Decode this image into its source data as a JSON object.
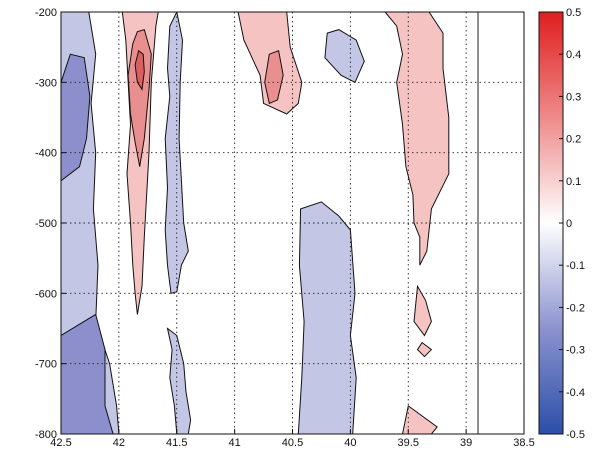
{
  "chart_data": {
    "type": "contour",
    "title": "",
    "xlabel": "",
    "ylabel": "",
    "x_reversed": true,
    "xlim": [
      42.5,
      38.5
    ],
    "ylim": [
      -800,
      -200
    ],
    "x_ticks": [
      "42.5",
      "42",
      "41.5",
      "41",
      "40.5",
      "40",
      "39.5",
      "39",
      "38.5"
    ],
    "x_tick_values": [
      42.5,
      42,
      41.5,
      41,
      40.5,
      40,
      39.5,
      39,
      38.5
    ],
    "y_ticks": [
      "-200",
      "-300",
      "-400",
      "-500",
      "-600",
      "-700",
      "-800"
    ],
    "y_tick_values": [
      -200,
      -300,
      -400,
      -500,
      -600,
      -700,
      -800
    ],
    "grid": true,
    "colorbar": {
      "min": -0.5,
      "max": 0.5,
      "ticks": [
        "0.5",
        "0.4",
        "0.3",
        "0.2",
        "0.1",
        "0",
        "-0.1",
        "-0.2",
        "-0.3",
        "-0.4",
        "-0.5"
      ],
      "tick_values": [
        0.5,
        0.4,
        0.3,
        0.2,
        0.1,
        0,
        -0.1,
        -0.2,
        -0.3,
        -0.4,
        -0.5
      ],
      "colormap": "blue-white-red",
      "low_color": "#2c4fa8",
      "mid_color": "#ffffff",
      "high_color": "#e01e1e"
    },
    "contour_levels": [
      -0.2,
      -0.1,
      0.1,
      0.2
    ],
    "level_colors": {
      "-0.2": "#8c8fcb",
      "-0.1": "#c4c6e6",
      "0.1": "#f6c3c3",
      "0.2": "#ea8f8f",
      "0.3": "#dd5e5e"
    },
    "regions": [
      {
        "level": -0.1,
        "points": [
          [
            42.5,
            -200
          ],
          [
            42.26,
            -200
          ],
          [
            42.2,
            -260
          ],
          [
            42.24,
            -330
          ],
          [
            42.2,
            -400
          ],
          [
            42.22,
            -480
          ],
          [
            42.18,
            -560
          ],
          [
            42.2,
            -640
          ],
          [
            42.08,
            -700
          ],
          [
            42.02,
            -760
          ],
          [
            42.0,
            -800
          ],
          [
            42.5,
            -800
          ]
        ]
      },
      {
        "level": -0.2,
        "points": [
          [
            42.5,
            -300
          ],
          [
            42.42,
            -260
          ],
          [
            42.3,
            -265
          ],
          [
            42.25,
            -320
          ],
          [
            42.28,
            -380
          ],
          [
            42.34,
            -420
          ],
          [
            42.5,
            -440
          ]
        ]
      },
      {
        "level": -0.2,
        "points": [
          [
            42.5,
            -660
          ],
          [
            42.2,
            -630
          ],
          [
            42.12,
            -680
          ],
          [
            42.12,
            -760
          ],
          [
            42.05,
            -800
          ],
          [
            42.5,
            -800
          ]
        ]
      },
      {
        "level": 0.1,
        "points": [
          [
            41.97,
            -200
          ],
          [
            41.94,
            -240
          ],
          [
            41.9,
            -360
          ],
          [
            41.93,
            -430
          ],
          [
            41.9,
            -500
          ],
          [
            41.88,
            -560
          ],
          [
            41.86,
            -600
          ],
          [
            41.84,
            -630
          ],
          [
            41.8,
            -590
          ],
          [
            41.78,
            -520
          ],
          [
            41.74,
            -400
          ],
          [
            41.72,
            -300
          ],
          [
            41.68,
            -220
          ],
          [
            41.66,
            -200
          ]
        ]
      },
      {
        "level": 0.2,
        "points": [
          [
            41.88,
            -245
          ],
          [
            41.92,
            -290
          ],
          [
            41.9,
            -345
          ],
          [
            41.86,
            -385
          ],
          [
            41.82,
            -420
          ],
          [
            41.78,
            -380
          ],
          [
            41.74,
            -310
          ],
          [
            41.72,
            -260
          ],
          [
            41.78,
            -225
          ],
          [
            41.84,
            -228
          ]
        ]
      },
      {
        "level": 0.3,
        "points": [
          [
            41.83,
            -255
          ],
          [
            41.86,
            -275
          ],
          [
            41.84,
            -300
          ],
          [
            41.8,
            -310
          ],
          [
            41.78,
            -285
          ],
          [
            41.79,
            -260
          ]
        ]
      },
      {
        "level": -0.1,
        "points": [
          [
            41.5,
            -200
          ],
          [
            41.56,
            -220
          ],
          [
            41.58,
            -280
          ],
          [
            41.56,
            -320
          ],
          [
            41.6,
            -380
          ],
          [
            41.58,
            -450
          ],
          [
            41.6,
            -510
          ],
          [
            41.58,
            -560
          ],
          [
            41.55,
            -600
          ],
          [
            41.5,
            -598
          ],
          [
            41.46,
            -560
          ],
          [
            41.4,
            -540
          ],
          [
            41.44,
            -500
          ],
          [
            41.46,
            -440
          ],
          [
            41.48,
            -380
          ],
          [
            41.47,
            -300
          ],
          [
            41.45,
            -240
          ]
        ]
      },
      {
        "level": -0.1,
        "points": [
          [
            41.58,
            -650
          ],
          [
            41.54,
            -680
          ],
          [
            41.56,
            -720
          ],
          [
            41.52,
            -760
          ],
          [
            41.5,
            -800
          ],
          [
            41.4,
            -800
          ],
          [
            41.38,
            -780
          ],
          [
            41.42,
            -740
          ],
          [
            41.44,
            -700
          ],
          [
            41.5,
            -660
          ]
        ]
      },
      {
        "level": 0.1,
        "points": [
          [
            40.97,
            -200
          ],
          [
            40.92,
            -240
          ],
          [
            40.78,
            -290
          ],
          [
            40.75,
            -330
          ],
          [
            40.55,
            -345
          ],
          [
            40.45,
            -330
          ],
          [
            40.42,
            -300
          ],
          [
            40.52,
            -250
          ],
          [
            40.55,
            -200
          ]
        ]
      },
      {
        "level": 0.2,
        "points": [
          [
            40.7,
            -260
          ],
          [
            40.74,
            -300
          ],
          [
            40.7,
            -330
          ],
          [
            40.63,
            -325
          ],
          [
            40.58,
            -290
          ],
          [
            40.62,
            -255
          ]
        ]
      },
      {
        "level": -0.1,
        "points": [
          [
            40.2,
            -230
          ],
          [
            40.1,
            -225
          ],
          [
            39.95,
            -240
          ],
          [
            39.88,
            -270
          ],
          [
            39.96,
            -300
          ],
          [
            40.08,
            -290
          ],
          [
            40.22,
            -265
          ]
        ]
      },
      {
        "level": -0.1,
        "points": [
          [
            40.43,
            -480
          ],
          [
            40.25,
            -470
          ],
          [
            40.1,
            -490
          ],
          [
            40.0,
            -510
          ],
          [
            39.96,
            -600
          ],
          [
            40.0,
            -660
          ],
          [
            39.95,
            -720
          ],
          [
            39.98,
            -800
          ],
          [
            40.45,
            -800
          ],
          [
            40.42,
            -720
          ],
          [
            40.4,
            -640
          ],
          [
            40.44,
            -560
          ]
        ]
      },
      {
        "level": 0.1,
        "points": [
          [
            39.7,
            -200
          ],
          [
            39.6,
            -220
          ],
          [
            39.55,
            -260
          ],
          [
            39.6,
            -300
          ],
          [
            39.55,
            -360
          ],
          [
            39.52,
            -420
          ],
          [
            39.46,
            -460
          ],
          [
            39.45,
            -500
          ],
          [
            39.4,
            -520
          ],
          [
            39.4,
            -560
          ],
          [
            39.34,
            -540
          ],
          [
            39.3,
            -480
          ],
          [
            39.15,
            -430
          ],
          [
            39.15,
            -350
          ],
          [
            39.2,
            -280
          ],
          [
            39.2,
            -230
          ],
          [
            39.32,
            -200
          ]
        ]
      },
      {
        "level": 0.1,
        "points": [
          [
            39.42,
            -590
          ],
          [
            39.35,
            -610
          ],
          [
            39.3,
            -640
          ],
          [
            39.36,
            -660
          ],
          [
            39.45,
            -640
          ]
        ]
      },
      {
        "level": 0.1,
        "points": [
          [
            39.38,
            -670
          ],
          [
            39.3,
            -680
          ],
          [
            39.36,
            -690
          ],
          [
            39.42,
            -680
          ]
        ]
      },
      {
        "level": 0.1,
        "points": [
          [
            39.5,
            -760
          ],
          [
            39.25,
            -790
          ],
          [
            39.3,
            -800
          ],
          [
            39.55,
            -800
          ]
        ]
      }
    ]
  }
}
